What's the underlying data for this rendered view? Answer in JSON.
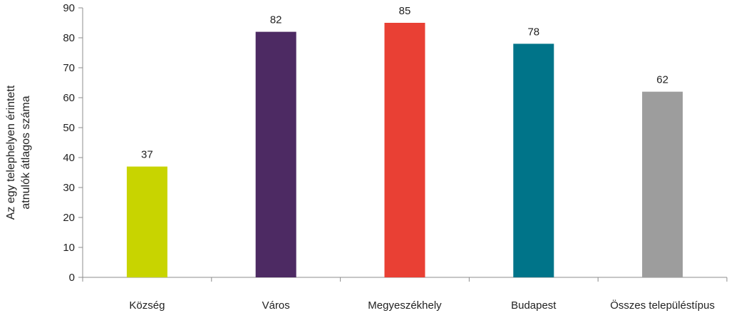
{
  "chart_data": {
    "type": "bar",
    "title": "",
    "xlabel": "",
    "ylabel_lines": [
      "Az egy telephelyen érintett",
      "atnulók átlagos száma"
    ],
    "categories": [
      "Község",
      "Város",
      "Megyeszékhely",
      "Budapest",
      "Összes településtípus"
    ],
    "values": [
      37,
      82,
      85,
      78,
      62
    ],
    "value_labels": [
      "37",
      "82",
      "85",
      "78",
      "62"
    ],
    "colors": [
      "#c8d400",
      "#4d2a63",
      "#e94034",
      "#007489",
      "#9d9d9d"
    ],
    "ylim": [
      0,
      90
    ],
    "yticks": [
      0,
      10,
      20,
      30,
      40,
      50,
      60,
      70,
      80,
      90
    ],
    "ytick_labels": [
      "0",
      "10",
      "20",
      "30",
      "40",
      "50",
      "60",
      "70",
      "80",
      "90"
    ],
    "grid": false,
    "legend": "none"
  }
}
